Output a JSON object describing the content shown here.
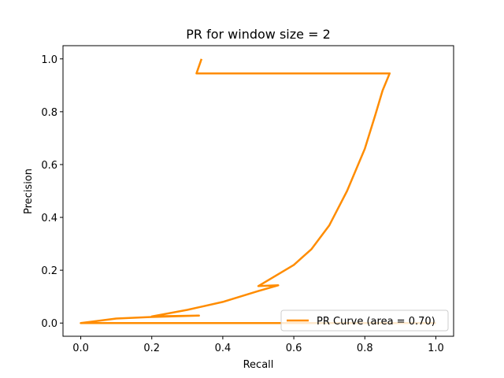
{
  "chart_data": {
    "type": "line",
    "title": "PR for window size = 2",
    "xlabel": "Recall",
    "ylabel": "Precision",
    "xlim": [
      -0.05,
      1.05
    ],
    "ylim": [
      -0.05,
      1.05
    ],
    "xticks": [
      0.0,
      0.2,
      0.4,
      0.6,
      0.8,
      1.0
    ],
    "xtick_labels": [
      "0.0",
      "0.2",
      "0.4",
      "0.6",
      "0.8",
      "1.0"
    ],
    "yticks": [
      0.0,
      0.2,
      0.4,
      0.6,
      0.8,
      1.0
    ],
    "ytick_labels": [
      "0.0",
      "0.2",
      "0.4",
      "0.6",
      "0.8",
      "1.0"
    ],
    "grid": false,
    "legend_position": "lower right",
    "series": [
      {
        "name": "PR Curve (area = 0.70)",
        "color": "#ff8c00",
        "x": [
          1.0,
          0.0,
          0.1,
          0.2,
          0.333,
          0.2,
          0.3,
          0.4,
          0.5,
          0.556,
          0.5,
          0.6,
          0.65,
          0.7,
          0.75,
          0.8,
          0.83,
          0.85,
          0.87,
          0.326,
          0.34
        ],
        "y": [
          0.0,
          0.0,
          0.017,
          0.023,
          0.028,
          0.025,
          0.05,
          0.08,
          0.121,
          0.143,
          0.14,
          0.22,
          0.28,
          0.37,
          0.5,
          0.66,
          0.79,
          0.88,
          0.945,
          0.945,
          1.0
        ]
      }
    ]
  }
}
